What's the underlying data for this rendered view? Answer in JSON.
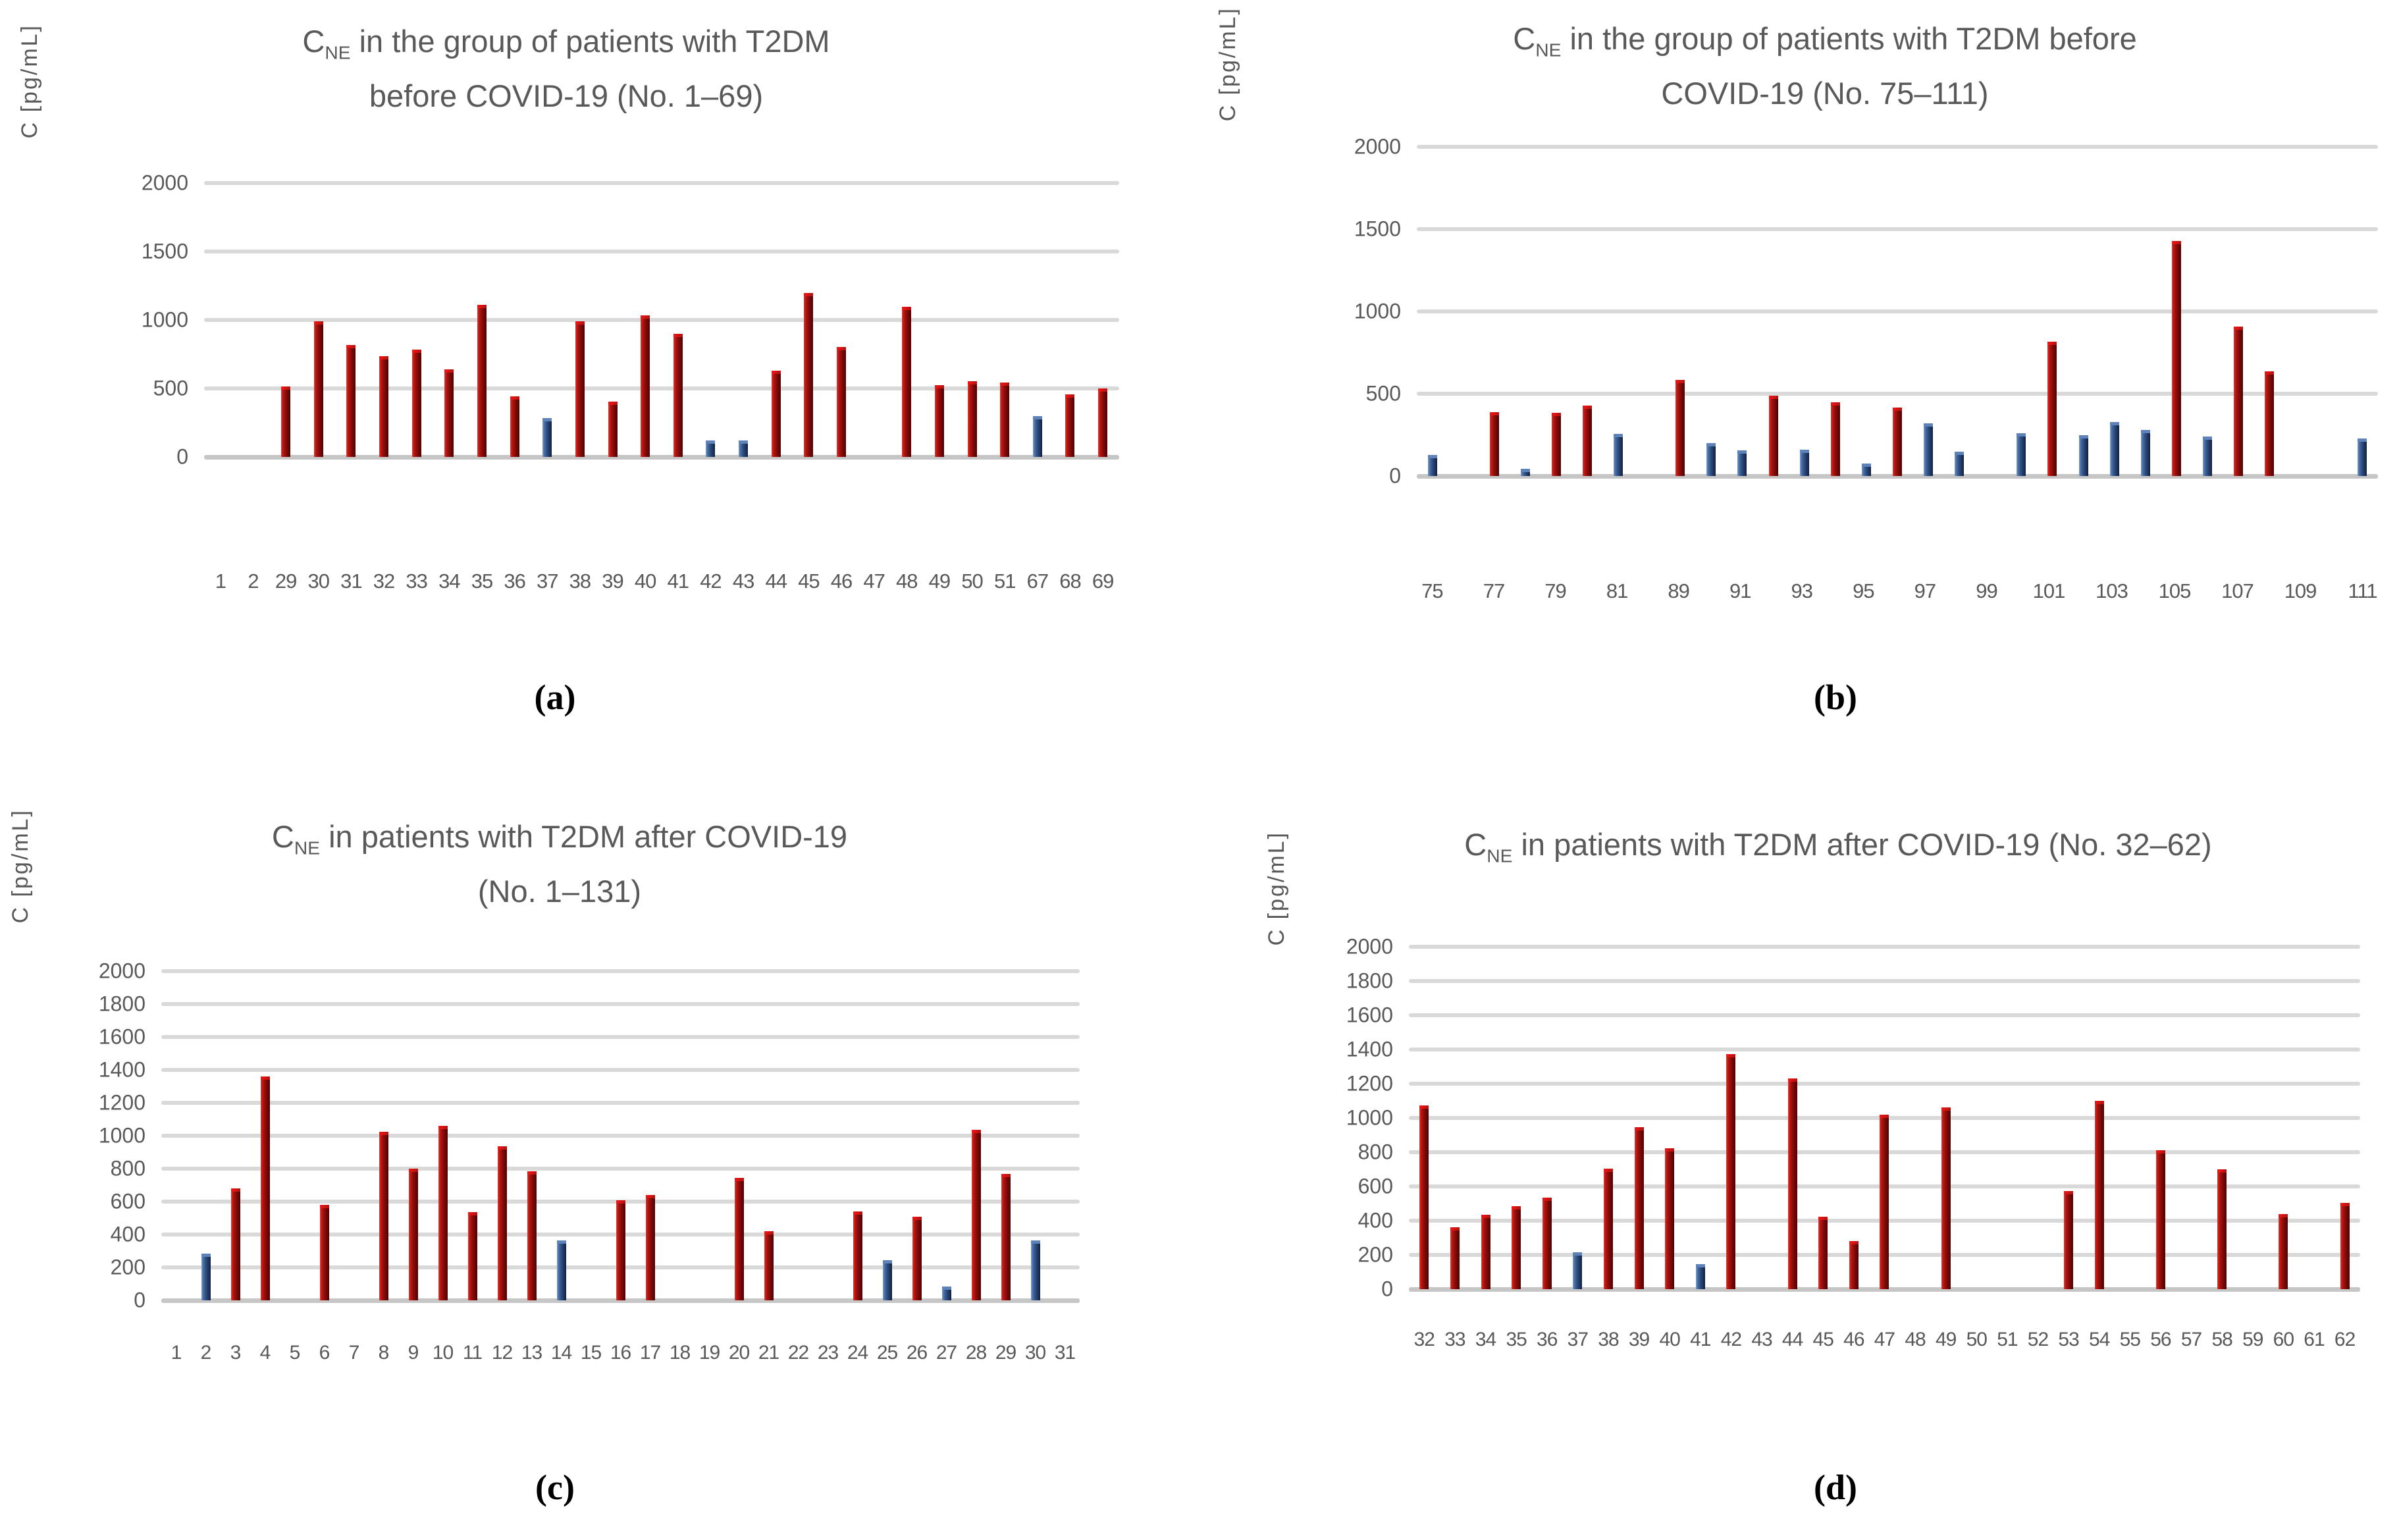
{
  "figure": {
    "colors": {
      "bar-red-mid": "#9a0f0c",
      "bar-red-cap": "#f21717",
      "bar-blue-mid": "#2f5183",
      "bar-blue-cap": "#5d83b8",
      "gridline": "#d9d9d9",
      "axis-line": "#c6c6c6",
      "tick-text": "#595959",
      "title-text": "#595959",
      "caption-text": "#000000"
    },
    "series_legend": {
      "r": "dark-red-bar",
      "b": "dark-blue-bar"
    }
  },
  "chart_data": [
    {
      "id": "a",
      "type": "bar",
      "caption": "(a)",
      "title": "CNE in the group of patients with T2DM before COVID-19 (No. 1–69)",
      "title_lines": [
        "C~NE~ in the group of patients with T2DM",
        "before COVID-19 (No. 1–69)"
      ],
      "y_axis_label": "C [pg/mL]",
      "xlabel": "",
      "ylim": [
        0,
        2000
      ],
      "grid": true,
      "legend": false,
      "y_ticks": [
        2000,
        1500,
        1000,
        500,
        0
      ],
      "categories": [
        "1",
        "2",
        "29",
        "30",
        "31",
        "32",
        "33",
        "34",
        "35",
        "36",
        "37",
        "38",
        "39",
        "40",
        "41",
        "42",
        "43",
        "44",
        "45",
        "46",
        "47",
        "48",
        "49",
        "50",
        "51",
        "67",
        "68",
        "69"
      ],
      "x_tick_labels": [
        "1",
        "2",
        "29",
        "30",
        "31",
        "32",
        "33",
        "34",
        "35",
        "36",
        "37",
        "38",
        "39",
        "40",
        "41",
        "42",
        "43",
        "44",
        "45",
        "46",
        "47",
        "48",
        "49",
        "50",
        "51",
        "67",
        "68",
        "69"
      ],
      "values": [
        0,
        0,
        515,
        990,
        815,
        735,
        785,
        640,
        1110,
        440,
        285,
        990,
        405,
        1035,
        900,
        120,
        120,
        630,
        1195,
        805,
        0,
        1095,
        525,
        555,
        545,
        300,
        455,
        500
      ],
      "series_color": [
        "",
        "",
        "r",
        "r",
        "r",
        "r",
        "r",
        "r",
        "r",
        "r",
        "b",
        "r",
        "r",
        "r",
        "r",
        "b",
        "b",
        "r",
        "r",
        "r",
        "",
        "r",
        "r",
        "r",
        "r",
        "b",
        "r",
        "r"
      ]
    },
    {
      "id": "b",
      "type": "bar",
      "caption": "(b)",
      "title": "CNE in the group of patients with T2DM before COVID-19 (No. 75–111)",
      "title_lines": [
        "C~NE~ in the group of patients with T2DM before",
        "COVID-19 (No. 75–111)"
      ],
      "y_axis_label": "C [pg/mL]",
      "xlabel": "",
      "ylim": [
        0,
        2000
      ],
      "grid": true,
      "legend": false,
      "y_ticks": [
        2000,
        1500,
        1000,
        500,
        0
      ],
      "categories": [
        "75",
        "76",
        "77",
        "78",
        "79",
        "80",
        "81",
        "",
        "89",
        "90",
        "91",
        "92",
        "93",
        "94",
        "95",
        "96",
        "97",
        "98",
        "99",
        "100",
        "101",
        "102",
        "103",
        "104",
        "105",
        "106",
        "107",
        "108",
        "109",
        "110",
        "111"
      ],
      "x_tick_labels": [
        "75",
        "",
        "77",
        "",
        "79",
        "",
        "81",
        "",
        "89",
        "",
        "91",
        "",
        "93",
        "",
        "95",
        "",
        "97",
        "",
        "99",
        "",
        "101",
        "",
        "103",
        "",
        "105",
        "",
        "107",
        "",
        "109",
        "",
        "111"
      ],
      "values": [
        130,
        0,
        390,
        45,
        385,
        430,
        255,
        0,
        585,
        200,
        155,
        490,
        160,
        450,
        75,
        415,
        320,
        150,
        0,
        260,
        815,
        250,
        330,
        280,
        1430,
        240,
        910,
        635,
        0,
        0,
        230
      ],
      "series_color": [
        "b",
        "",
        "r",
        "b",
        "r",
        "r",
        "b",
        "",
        "r",
        "b",
        "b",
        "r",
        "b",
        "r",
        "b",
        "r",
        "b",
        "b",
        "",
        "b",
        "r",
        "b",
        "b",
        "b",
        "r",
        "b",
        "r",
        "r",
        "",
        "",
        "b"
      ]
    },
    {
      "id": "c",
      "type": "bar",
      "caption": "(c)",
      "title": "CNE in patients with T2DM after COVID-19 (No. 1–131)",
      "title_lines": [
        "C~NE~ in patients with T2DM after COVID-19",
        "(No. 1–131)"
      ],
      "y_axis_label": "C [pg/mL]",
      "xlabel": "",
      "ylim": [
        0,
        2000
      ],
      "grid": true,
      "legend": false,
      "y_ticks": [
        2000,
        1800,
        1600,
        1400,
        1200,
        1000,
        800,
        600,
        400,
        200,
        0
      ],
      "categories": [
        "1",
        "2",
        "3",
        "4",
        "5",
        "6",
        "7",
        "8",
        "9",
        "10",
        "11",
        "12",
        "13",
        "14",
        "15",
        "16",
        "17",
        "18",
        "19",
        "20",
        "21",
        "22",
        "23",
        "24",
        "25",
        "26",
        "27",
        "28",
        "29",
        "30",
        "31"
      ],
      "x_tick_labels": [
        "1",
        "2",
        "3",
        "4",
        "5",
        "6",
        "7",
        "8",
        "9",
        "10",
        "11",
        "12",
        "13",
        "14",
        "15",
        "16",
        "17",
        "18",
        "19",
        "20",
        "21",
        "22",
        "23",
        "24",
        "25",
        "26",
        "27",
        "28",
        "29",
        "30",
        "31"
      ],
      "values": [
        0,
        285,
        680,
        1360,
        0,
        580,
        0,
        1025,
        800,
        1060,
        535,
        935,
        785,
        365,
        0,
        610,
        640,
        0,
        0,
        745,
        420,
        0,
        0,
        540,
        245,
        510,
        85,
        1035,
        770,
        365,
        0
      ],
      "series_color": [
        "",
        "b",
        "r",
        "r",
        "",
        "r",
        "",
        "r",
        "r",
        "r",
        "r",
        "r",
        "r",
        "b",
        "",
        "r",
        "r",
        "",
        "",
        "r",
        "r",
        "",
        "",
        "r",
        "b",
        "r",
        "b",
        "r",
        "r",
        "b",
        ""
      ]
    },
    {
      "id": "d",
      "type": "bar",
      "caption": "(d)",
      "title": "CNE in patients with T2DM after COVID-19 (No. 32–62)",
      "title_lines": [
        "C~NE~ in patients with T2DM after COVID-19 (No. 32–62)"
      ],
      "y_axis_label": "C [pg/mL]",
      "xlabel": "",
      "ylim": [
        0,
        2000
      ],
      "grid": true,
      "legend": false,
      "y_ticks": [
        2000,
        1800,
        1600,
        1400,
        1200,
        1000,
        800,
        600,
        400,
        200,
        0
      ],
      "categories": [
        "32",
        "33",
        "34",
        "35",
        "36",
        "37",
        "38",
        "39",
        "40",
        "41",
        "42",
        "43",
        "44",
        "45",
        "46",
        "47",
        "48",
        "49",
        "50",
        "51",
        "52",
        "53",
        "54",
        "55",
        "56",
        "57",
        "58",
        "59",
        "60",
        "61",
        "62"
      ],
      "x_tick_labels": [
        "32",
        "33",
        "34",
        "35",
        "36",
        "37",
        "38",
        "39",
        "40",
        "41",
        "42",
        "43",
        "44",
        "45",
        "46",
        "47",
        "48",
        "49",
        "50",
        "51",
        "52",
        "53",
        "54",
        "55",
        "56",
        "57",
        "58",
        "59",
        "60",
        "61",
        "62"
      ],
      "values": [
        1075,
        360,
        435,
        485,
        535,
        215,
        705,
        945,
        825,
        145,
        1375,
        0,
        1230,
        425,
        280,
        1020,
        0,
        1060,
        0,
        0,
        0,
        575,
        1100,
        0,
        810,
        0,
        700,
        0,
        440,
        0,
        505
      ],
      "series_color": [
        "r",
        "r",
        "r",
        "r",
        "r",
        "b",
        "r",
        "r",
        "r",
        "b",
        "r",
        "",
        "r",
        "r",
        "r",
        "r",
        "",
        "r",
        "",
        "",
        "",
        "r",
        "r",
        "",
        "r",
        "",
        "r",
        "",
        "r",
        "",
        "r"
      ]
    }
  ]
}
